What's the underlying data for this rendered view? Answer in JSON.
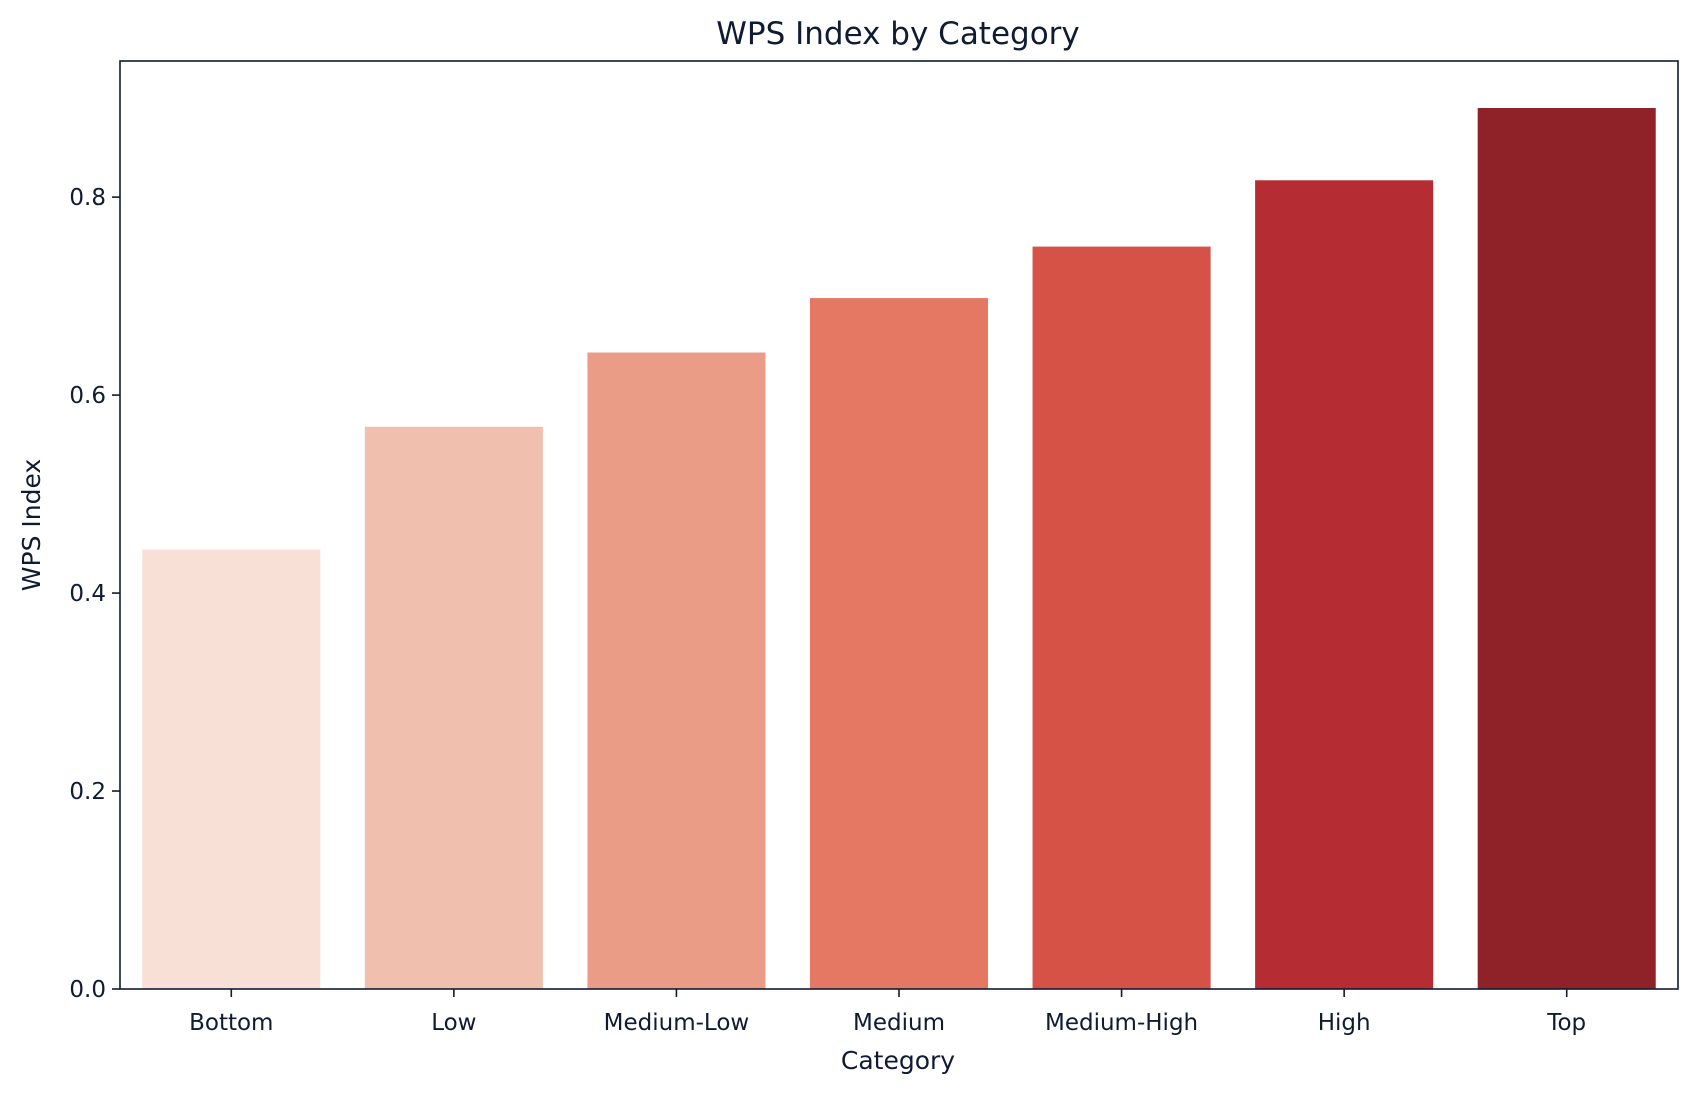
{
  "chart_data": {
    "type": "bar",
    "title": "WPS Index by Category",
    "xlabel": "Category",
    "ylabel": "WPS Index",
    "categories": [
      "Bottom",
      "Low",
      "Medium-Low",
      "Medium",
      "Medium-High",
      "High",
      "Top"
    ],
    "values": [
      0.444,
      0.568,
      0.643,
      0.698,
      0.75,
      0.817,
      0.89
    ],
    "colors": [
      "#f8e0d6",
      "#f0bfad",
      "#ea9c86",
      "#e47862",
      "#d65146",
      "#b52d32",
      "#8f2128"
    ],
    "ylim": [
      0,
      0.9375
    ],
    "yticks": [
      0.0,
      0.2,
      0.4,
      0.6,
      0.8
    ],
    "ytick_labels": [
      "0.0",
      "0.2",
      "0.4",
      "0.6",
      "0.8"
    ],
    "grid": false,
    "legend": "none"
  }
}
